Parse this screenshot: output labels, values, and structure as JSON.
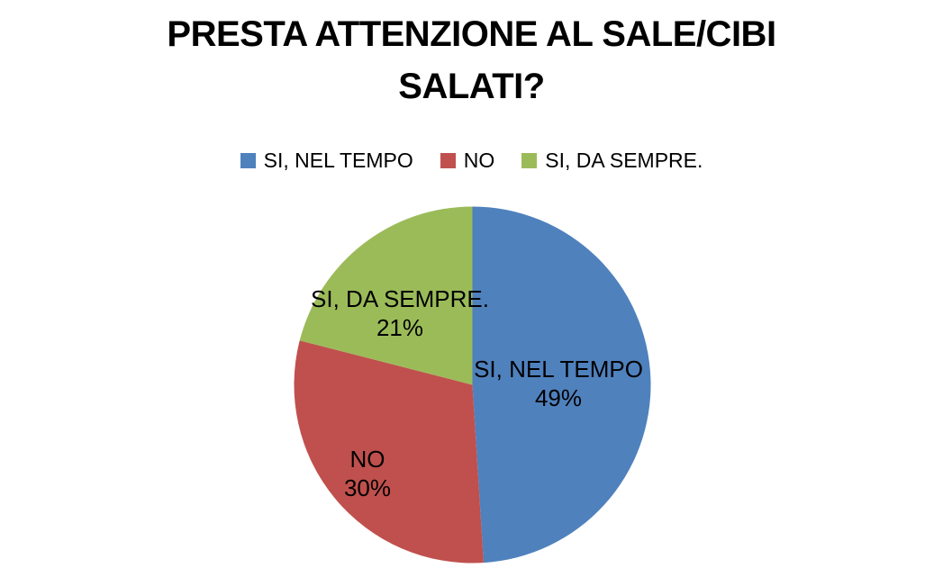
{
  "chart_data": {
    "type": "pie",
    "title": "PRESTA ATTENZIONE AL SALE/CIBI SALATI?",
    "title_lines": [
      "PRESTA ATTENZIONE AL SALE/CIBI",
      "SALATI?"
    ],
    "title_color": "#000000",
    "background": "#FFFFFF",
    "legend_position": "top",
    "direction": "clockwise",
    "start_angle_deg": 0,
    "label_text_color": "#000000",
    "slices": [
      {
        "label": "SI, NEL TEMPO",
        "value": 49,
        "pct_label": "49%",
        "color": "#4F81BD"
      },
      {
        "label": "NO",
        "value": 30,
        "pct_label": "30%",
        "color": "#C0504D"
      },
      {
        "label": "SI, DA SEMPRE.",
        "value": 21,
        "pct_label": "21%",
        "color": "#9BBB59"
      }
    ]
  }
}
